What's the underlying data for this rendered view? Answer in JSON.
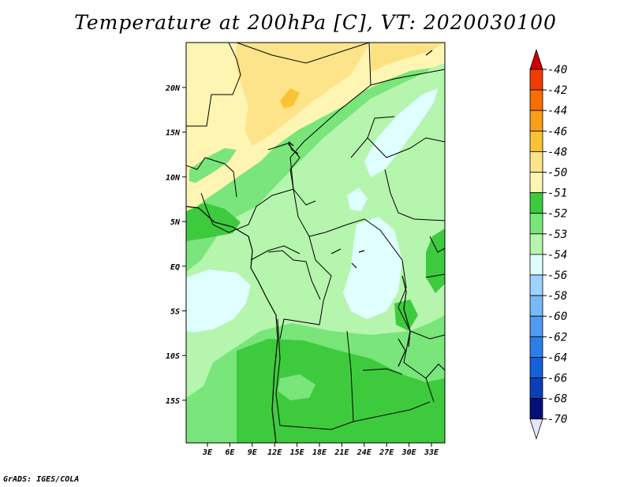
{
  "title": "Temperature at 200hPa [C], VT: 2020030100",
  "credit": "GrADS: IGES/COLA",
  "map": {
    "lon_labels": [
      "3E",
      "6E",
      "9E",
      "12E",
      "15E",
      "18E",
      "21E",
      "24E",
      "27E",
      "30E",
      "33E"
    ],
    "lat_labels": [
      "20N",
      "15N",
      "10N",
      "5N",
      "EQ",
      "5S",
      "10S",
      "15S"
    ],
    "field_colors": {
      "-50": "#fde48a",
      "-51": "#fef5b2",
      "-52": "#3dcb3d",
      "-53": "#79e57a",
      "-54": "#b5f5ad",
      "-56": "#e0ffff"
    }
  },
  "colorbar": {
    "labels": [
      "-40",
      "-42",
      "-44",
      "-46",
      "-48",
      "-50",
      "-51",
      "-52",
      "-53",
      "-54",
      "-56",
      "-58",
      "-60",
      "-62",
      "-64",
      "-66",
      "-68",
      "-70"
    ],
    "colors": [
      "#d20000",
      "#f03c00",
      "#f86e00",
      "#f8a019",
      "#fac235",
      "#fde48a",
      "#fef5b2",
      "#3dcb3d",
      "#79e57a",
      "#b5f5ad",
      "#e0ffff",
      "#9ed3ff",
      "#78b9f8",
      "#4e9bf0",
      "#2a80e8",
      "#1560d7",
      "#0a3fb7",
      "#050f78",
      "#e6e6fa"
    ]
  }
}
